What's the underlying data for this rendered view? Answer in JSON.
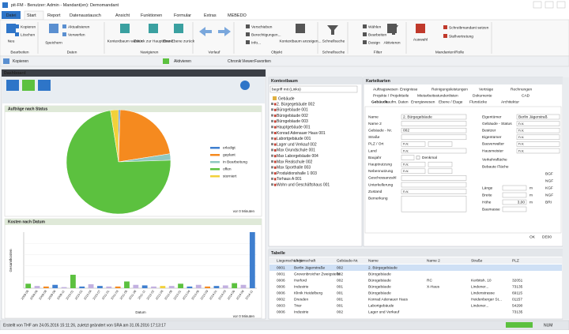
{
  "window": {
    "title": "pit-FM - Benutzer: Admin - Mandant(en): Demomandant"
  },
  "tabs": [
    "Datei",
    "Start",
    "Report",
    "Datenaustausch",
    "Ansicht",
    "Funktionen",
    "Formular",
    "Extras",
    "MEBEDO"
  ],
  "ribbon": {
    "groups": [
      {
        "label": "Bearbeiten",
        "items": [
          "Neu",
          "Kopieren",
          "Löschen"
        ]
      },
      {
        "label": "Daten",
        "items": [
          "Speichern",
          "Aktualisieren",
          "Verwerfen"
        ]
      },
      {
        "label": "Navigieren",
        "items": [
          "Kontextbaum wählen",
          "Zurück zur Hauptebene",
          "Eine Ebene zurück"
        ]
      },
      {
        "label": "Verlauf",
        "items": []
      },
      {
        "label": "Objekt",
        "items": [
          "Verschieben",
          "Berechtigungen...",
          "Info...",
          "Kontextbaum anzeigen..."
        ]
      },
      {
        "label": "Schnellsuche",
        "items": []
      },
      {
        "label": "Filter",
        "items": [
          "Wählen",
          "Bearbeiten",
          "Design",
          "Aktivieren"
        ]
      },
      {
        "label": "Mandanten/Rolle",
        "items": [
          "Auswahl",
          "Schreibmandant setzen",
          "Stellvertretung"
        ]
      }
    ]
  },
  "toolbar": [
    "Kopieren",
    "Aktivieren",
    "Chronik",
    "Viewer:",
    "Favoriten"
  ],
  "dashboard": {
    "title": "Dashboard",
    "pie_chart": {
      "type": "pie",
      "title": "Aufträge nach Status",
      "updated": "vor 0 Minuten",
      "series": [
        {
          "name": "erledigt",
          "color": "#3f7fcf",
          "values": [
            0.5
          ]
        },
        {
          "name": "geplant",
          "color": "#f58a1f",
          "values": [
            22
          ]
        },
        {
          "name": "in Bearbeitung",
          "color": "#8fc8c0",
          "values": [
            2
          ]
        },
        {
          "name": "offen",
          "color": "#5cc13f",
          "values": [
            73
          ]
        },
        {
          "name": "storniert",
          "color": "#f2d13a",
          "values": [
            2.5
          ]
        }
      ]
    },
    "bar_chart": {
      "type": "bar",
      "title": "Kosten nach Datum",
      "x_label": "Datum",
      "y_label": "Gesamtkosten",
      "updated": "vor 0 Minuten",
      "categories": [
        "2009-05",
        "2009-06",
        "2009-08",
        "2009-09",
        "2009-11",
        "2010-01",
        "2010-02",
        "2010-04",
        "2010-07",
        "2011-01",
        "2011-03",
        "2011-05",
        "2011-08",
        "2011-11",
        "2012-02",
        "2012-05",
        "2012-09",
        "2013-01",
        "2013-04",
        "2013-06",
        "2013-09",
        "2014-01",
        "2014-03",
        "2014-06",
        "2014-09",
        "2014-11"
      ],
      "values": [
        8,
        4,
        3,
        6,
        2,
        24,
        3,
        7,
        4,
        3,
        3,
        12,
        6,
        5,
        3,
        4,
        4,
        8,
        3,
        6,
        3,
        4,
        5,
        9,
        6,
        100
      ],
      "colors": [
        "#5cc13f",
        "#c2b0e0",
        "#f58a1f",
        "#3f7fcf",
        "#c2b0e0",
        "#5cc13f",
        "#3f7fcf",
        "#c2b0e0",
        "#3f7fcf",
        "#c2b0e0",
        "#f58a1f",
        "#5cc13f",
        "#c2b0e0",
        "#3f7fcf",
        "#c2b0e0",
        "#f2d13a",
        "#c2b0e0",
        "#5cc13f",
        "#3f7fcf",
        "#c2b0e0",
        "#f58a1f",
        "#3f7fcf",
        "#c2b0e0",
        "#5cc13f",
        "#c2b0e0",
        "#3f7fcf"
      ],
      "ylim": [
        0,
        100
      ],
      "grid": true
    }
  },
  "kontextbaum": {
    "title": "Kontextbaum",
    "search": "begriff mit (Links)",
    "root": "Gebäude",
    "items": [
      "2. Bürgegebäude 002",
      "Bürogebäude 001",
      "Bürogebäude 002",
      "Bürogebäude 003",
      "Hauptgebäude 001",
      "Konrad Adenauer Haus 001",
      "Labortgebäude 001",
      "Lager und Verkauf 002",
      "Max Grundschule 001",
      "Max Laborgebäude 004",
      "Max Realschule 002",
      "Max Sporthalle 003",
      "Produktionshalle 1 003",
      "Torhaus A 001",
      "Wohn und Geschäftshaus 001"
    ]
  },
  "karteikarten": {
    "title": "Karteikarten",
    "tab_rows": [
      [
        "Auftragswesen",
        "Ereignisse",
        "Reinigungsleistungen",
        "Verträge",
        "Rechnungen"
      ],
      [
        "Projekte / Projektteile",
        "Mietarbeitsstundenlisten",
        "Dokumente",
        "CAD"
      ],
      [
        "Gebäude",
        "kaufm. Daten",
        "Energiewesen",
        "Ebene / Etage",
        "Flurstücke",
        "Architektur"
      ]
    ],
    "left_fields": [
      {
        "label": "Name",
        "value": "2. Bürgegebäude"
      },
      {
        "label": "Name 2"
      },
      {
        "label": "Gebäude - Nr.",
        "value": "002"
      },
      {
        "label": "Straße"
      },
      {
        "label": "PLZ / Ort",
        "value": "n.v."
      },
      {
        "label": "Land",
        "value": "n.v."
      },
      {
        "label": "Baujahr",
        "value": "Denkmal"
      },
      {
        "label": "Hauptnutzung",
        "value": "n.v."
      },
      {
        "label": "Nebennutzung",
        "value": "n.v."
      },
      {
        "label": "Geschossanzahl"
      },
      {
        "label": "Unterkellerung"
      },
      {
        "label": "Zustand",
        "value": "n.v."
      },
      {
        "label": "Bemerkung"
      }
    ],
    "right_fields": [
      {
        "label": "Eigentümer",
        "value": "Berlin Jägerstraß"
      },
      {
        "label": "Gebäude - Status",
        "value": "n.v."
      },
      {
        "label": "Besitzer",
        "value": "n.v."
      },
      {
        "label": "Eigentümer",
        "value": "n.v."
      },
      {
        "label": "Bauverwalter",
        "value": "n.v."
      },
      {
        "label": "Hausmeister",
        "value": "n.v."
      }
    ],
    "areas": [
      "Verkehrsfläche",
      "Bebaute Fläche",
      "BGF",
      "NGF"
    ],
    "dims": [
      {
        "label": "Länge",
        "unit": "m",
        "area": "KGF"
      },
      {
        "label": "Breite",
        "unit": "m",
        "area": "NGF"
      },
      {
        "label": "Höhe",
        "value": "3,00",
        "unit": "m",
        "area": "BRI"
      },
      {
        "label": "Baumasse"
      }
    ],
    "footer": [
      "OK",
      "DE00"
    ]
  },
  "tabelle": {
    "title": "Tabelle",
    "columns": [
      "Liegenschaft-Nr.",
      "Liegenschaft",
      "Gebäude-Nr.",
      "Name",
      "Name 2",
      "Straße",
      "PLZ"
    ],
    "rows": [
      [
        "0001",
        "Berlin Jägerstraße",
        "002",
        "2. Bürgegebäude"
      ],
      [
        "0001",
        "Grevenbroicher Zweigstelle",
        "002",
        "Bürogebäude"
      ],
      [
        "0006",
        "Herford",
        "002",
        "Bürogebäude",
        "RC",
        "Kerbitsh. 10",
        "32051"
      ],
      [
        "0006",
        "Industrie",
        "001",
        "Bürogebäude",
        "X-Haus",
        "Lindener...",
        "73135"
      ],
      [
        "0006",
        "Klinik Heidelberg",
        "001",
        "Bürogebäude",
        null,
        "Lindenstrasse",
        "69115"
      ],
      [
        "0002",
        "Dresden",
        "001",
        "Konrad Adenauer Haus",
        null,
        "Heidenberger St...",
        "01157"
      ],
      [
        "0003",
        "Trier",
        "001",
        "Labortgebäude",
        null,
        "Lindener...",
        "54290"
      ],
      [
        "0006",
        "Industrie",
        "002",
        "Lager und Verkauf",
        null,
        null,
        "73135"
      ]
    ]
  },
  "status": {
    "text": "Erstellt von THF am 24.05.2016 15:11:26, zuletzt geändert von SRA am 31.05.2016 17:13:17",
    "mode": "NUM"
  }
}
